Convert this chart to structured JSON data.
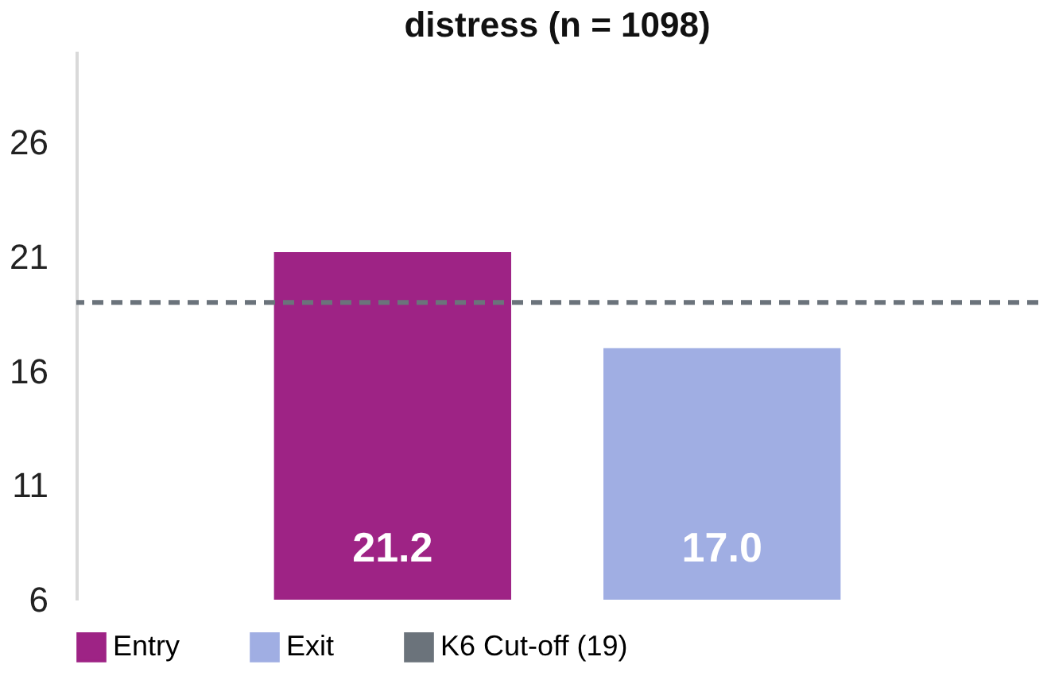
{
  "chart_data": {
    "type": "bar",
    "title": "distress (n = 1098)",
    "categories": [
      null,
      null
    ],
    "series": [
      {
        "name": "Entry",
        "color": "#9e2385",
        "values": [
          21.2,
          null
        ],
        "value_labels": [
          "21.2",
          null
        ]
      },
      {
        "name": "Exit",
        "color": "#a0aee3",
        "values": [
          null,
          17.0
        ],
        "value_labels": [
          null,
          "17.0"
        ]
      }
    ],
    "ylim": [
      6,
      30
    ],
    "yticks": [
      6,
      11,
      16,
      21,
      26
    ],
    "grid": false,
    "legend": "bottom",
    "ref_lines": [
      {
        "axis": "y",
        "value": 19,
        "label": "K6 Cut-off (19)",
        "color": "#6b737b",
        "line_style": "dashed"
      }
    ]
  }
}
